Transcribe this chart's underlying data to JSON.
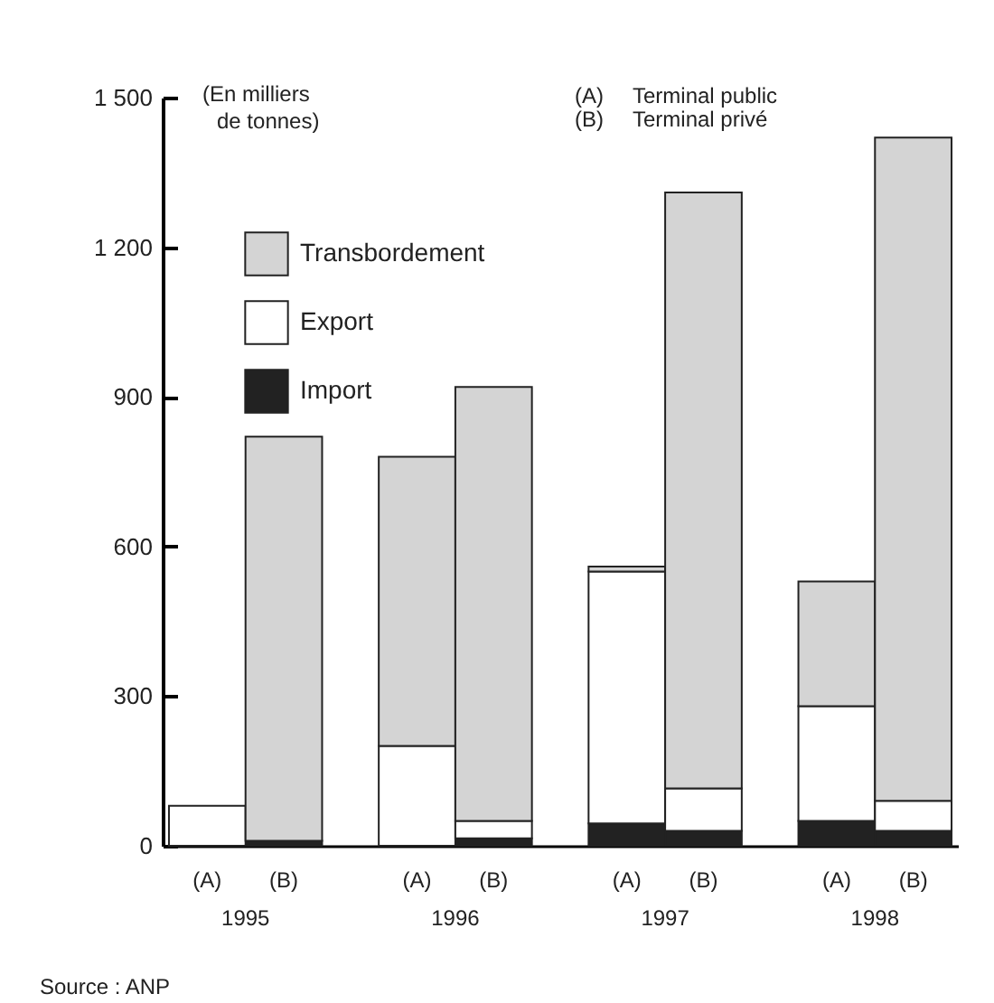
{
  "chart_data": {
    "type": "bar",
    "stacked": true,
    "ylabel": "(En milliers de tonnes)",
    "categories": [
      "(A)",
      "(B)",
      "(A)",
      "(B)",
      "(A)",
      "(B)",
      "(A)",
      "(B)"
    ],
    "series": [
      {
        "name": "Import",
        "color": "#222222",
        "values": [
          null,
          10,
          null,
          15,
          45,
          30,
          50,
          30
        ]
      },
      {
        "name": "Export",
        "color": "#ffffff",
        "values": [
          80,
          null,
          200,
          35,
          505,
          85,
          230,
          60
        ]
      },
      {
        "name": "Transbordement",
        "color": "#d4d4d4",
        "values": [
          null,
          810,
          580,
          870,
          10,
          1195,
          250,
          1330
        ]
      }
    ],
    "ylim": [
      0,
      1500
    ],
    "yticks": [
      0,
      300,
      600,
      900,
      {
        "value": 1200,
        "label": "1 200"
      },
      {
        "value": 1500,
        "label": "1 500"
      }
    ],
    "legend": "top left",
    "annotations": [
      "(A)",
      "Terminal public",
      "(B)",
      "Terminal privé",
      "1995",
      "1996",
      "1997",
      "1998",
      "Source : ANP"
    ]
  }
}
